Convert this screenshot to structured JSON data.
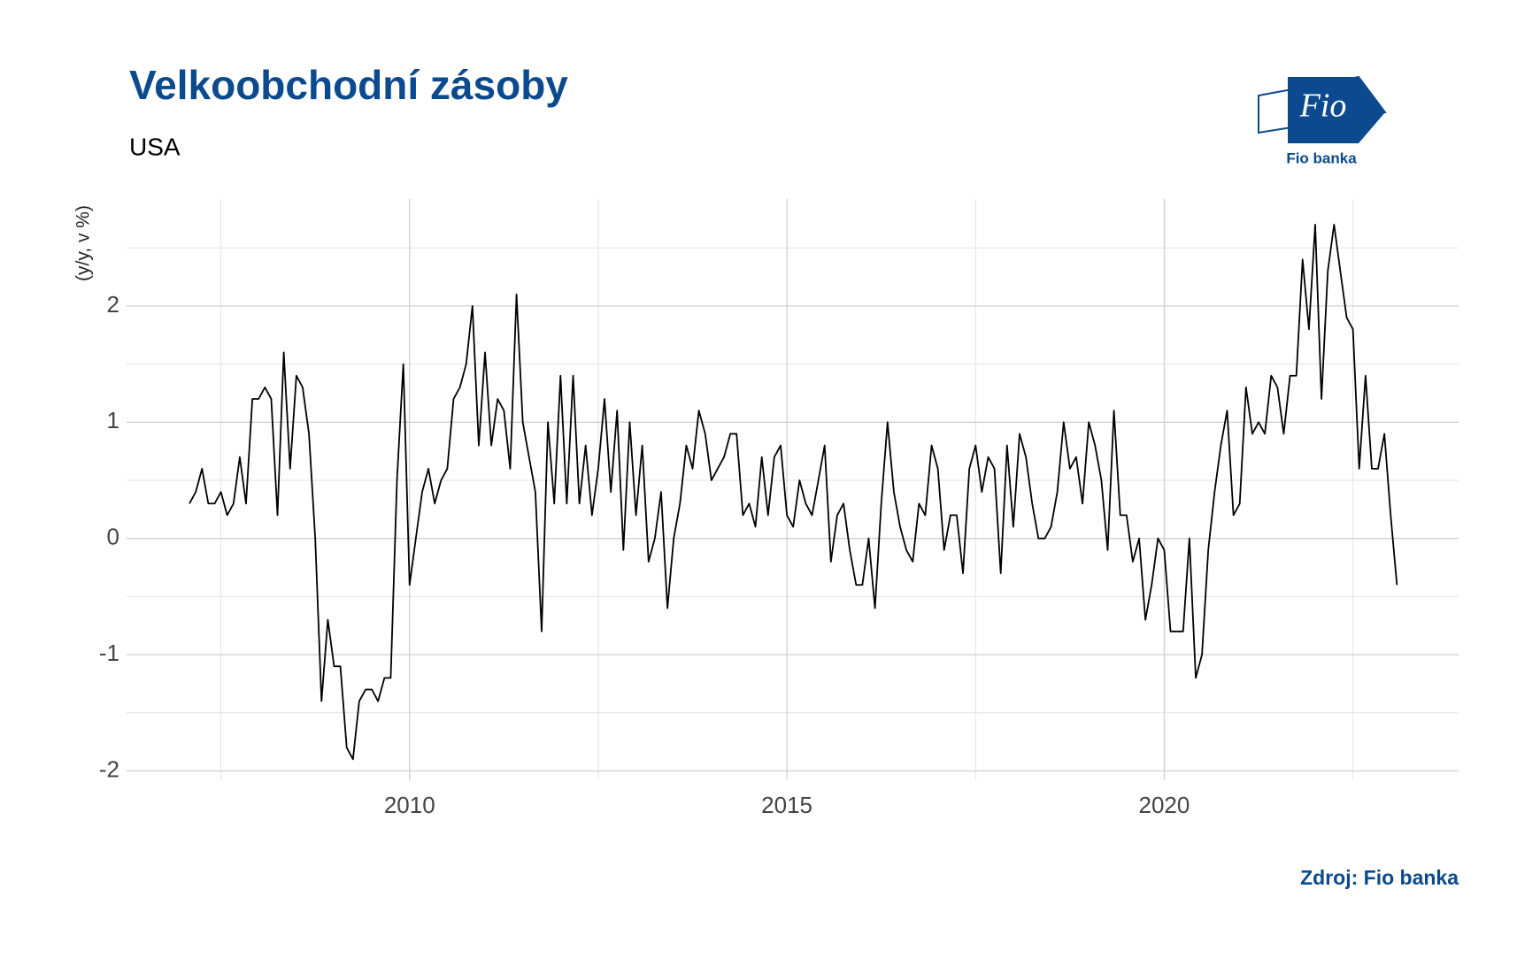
{
  "chart_data": {
    "type": "line",
    "title": "Velkoobchodní zásoby",
    "subtitle": "USA",
    "y_label": "(y/y, v %)",
    "source": "Zdroj: Fio banka",
    "x": [
      2007.083,
      2007.167,
      2007.25,
      2007.333,
      2007.417,
      2007.5,
      2007.583,
      2007.667,
      2007.75,
      2007.833,
      2007.917,
      2008,
      2008.083,
      2008.167,
      2008.25,
      2008.333,
      2008.417,
      2008.5,
      2008.583,
      2008.667,
      2008.75,
      2008.833,
      2008.917,
      2009,
      2009.083,
      2009.167,
      2009.25,
      2009.333,
      2009.417,
      2009.5,
      2009.583,
      2009.667,
      2009.75,
      2009.833,
      2009.917,
      2010,
      2010.083,
      2010.167,
      2010.25,
      2010.333,
      2010.417,
      2010.5,
      2010.583,
      2010.667,
      2010.75,
      2010.833,
      2010.917,
      2011,
      2011.083,
      2011.167,
      2011.25,
      2011.333,
      2011.417,
      2011.5,
      2011.583,
      2011.667,
      2011.75,
      2011.833,
      2011.917,
      2012,
      2012.083,
      2012.167,
      2012.25,
      2012.333,
      2012.417,
      2012.5,
      2012.583,
      2012.667,
      2012.75,
      2012.833,
      2012.917,
      2013,
      2013.083,
      2013.167,
      2013.25,
      2013.333,
      2013.417,
      2013.5,
      2013.583,
      2013.667,
      2013.75,
      2013.833,
      2013.917,
      2014,
      2014.083,
      2014.167,
      2014.25,
      2014.333,
      2014.417,
      2014.5,
      2014.583,
      2014.667,
      2014.75,
      2014.833,
      2014.917,
      2015,
      2015.083,
      2015.167,
      2015.25,
      2015.333,
      2015.417,
      2015.5,
      2015.583,
      2015.667,
      2015.75,
      2015.833,
      2015.917,
      2016,
      2016.083,
      2016.167,
      2016.25,
      2016.333,
      2016.417,
      2016.5,
      2016.583,
      2016.667,
      2016.75,
      2016.833,
      2016.917,
      2017,
      2017.083,
      2017.167,
      2017.25,
      2017.333,
      2017.417,
      2017.5,
      2017.583,
      2017.667,
      2017.75,
      2017.833,
      2017.917,
      2018,
      2018.083,
      2018.167,
      2018.25,
      2018.333,
      2018.417,
      2018.5,
      2018.583,
      2018.667,
      2018.75,
      2018.833,
      2018.917,
      2019,
      2019.083,
      2019.167,
      2019.25,
      2019.333,
      2019.417,
      2019.5,
      2019.583,
      2019.667,
      2019.75,
      2019.833,
      2019.917,
      2020,
      2020.083,
      2020.167,
      2020.25,
      2020.333,
      2020.417,
      2020.5,
      2020.583,
      2020.667,
      2020.75,
      2020.833,
      2020.917,
      2021,
      2021.083,
      2021.167,
      2021.25,
      2021.333,
      2021.417,
      2021.5,
      2021.583,
      2021.667,
      2021.75,
      2021.833,
      2021.917,
      2022,
      2022.083,
      2022.167,
      2022.25,
      2022.333,
      2022.417,
      2022.5,
      2022.583,
      2022.667,
      2022.75,
      2022.833,
      2022.917,
      2023,
      2023.083
    ],
    "series": [
      {
        "color": "#000000",
        "values": [
          0.3,
          0.4,
          0.6,
          0.3,
          0.3,
          0.4,
          0.2,
          0.3,
          0.7,
          0.3,
          1.2,
          1.2,
          1.3,
          1.2,
          0.2,
          1.6,
          0.6,
          1.4,
          1.3,
          0.9,
          0.0,
          -1.4,
          -0.7,
          -1.1,
          -1.1,
          -1.8,
          -1.9,
          -1.4,
          -1.3,
          -1.3,
          -1.4,
          -1.2,
          -1.2,
          0.5,
          1.5,
          -0.4,
          0.0,
          0.4,
          0.6,
          0.3,
          0.5,
          0.6,
          1.2,
          1.3,
          1.5,
          2.0,
          0.8,
          1.6,
          0.8,
          1.2,
          1.1,
          0.6,
          2.1,
          1.0,
          0.7,
          0.4,
          -0.8,
          1.0,
          0.3,
          1.4,
          0.3,
          1.4,
          0.3,
          0.8,
          0.2,
          0.6,
          1.2,
          0.4,
          1.1,
          -0.1,
          1.0,
          0.2,
          0.8,
          -0.2,
          0.0,
          0.4,
          -0.6,
          0.0,
          0.3,
          0.8,
          0.6,
          1.1,
          0.9,
          0.5,
          0.6,
          0.7,
          0.9,
          0.9,
          0.2,
          0.3,
          0.1,
          0.7,
          0.2,
          0.7,
          0.8,
          0.2,
          0.1,
          0.5,
          0.3,
          0.2,
          0.5,
          0.8,
          -0.2,
          0.2,
          0.3,
          -0.1,
          -0.4,
          -0.4,
          0.0,
          -0.6,
          0.3,
          1.0,
          0.4,
          0.1,
          -0.1,
          -0.2,
          0.3,
          0.2,
          0.8,
          0.6,
          -0.1,
          0.2,
          0.2,
          -0.3,
          0.6,
          0.8,
          0.4,
          0.7,
          0.6,
          -0.3,
          0.8,
          0.1,
          0.9,
          0.7,
          0.3,
          0.0,
          0.0,
          0.1,
          0.4,
          1.0,
          0.6,
          0.7,
          0.3,
          1.0,
          0.8,
          0.5,
          -0.1,
          1.1,
          0.2,
          0.2,
          -0.2,
          0.0,
          -0.7,
          -0.4,
          0.0,
          -0.1,
          -0.8,
          -0.8,
          -0.8,
          0.0,
          -1.2,
          -1.0,
          -0.1,
          0.4,
          0.8,
          1.1,
          0.2,
          0.3,
          1.3,
          0.9,
          1.0,
          0.9,
          1.4,
          1.3,
          0.9,
          1.4,
          1.4,
          2.4,
          1.8,
          2.7,
          1.2,
          2.3,
          2.7,
          2.3,
          1.9,
          1.8,
          0.6,
          1.4,
          0.6,
          0.6,
          0.9,
          0.2,
          -0.4
        ]
      }
    ],
    "xlim": [
      2006.25,
      2023.9
    ],
    "xticks": [
      2010,
      2015,
      2020
    ],
    "x_minor_ticks": [
      2007.5,
      2012.5,
      2017.5,
      2022.5
    ],
    "ylim": [
      -2.08,
      2.92
    ],
    "yticks": [
      -2,
      -1,
      0,
      1,
      2
    ],
    "y_minor_ticks": [
      -1.5,
      -0.5,
      0.5,
      1.5,
      2.5
    ],
    "grid": true
  },
  "logo": {
    "mark": "Fio",
    "name": "Fio banka"
  }
}
